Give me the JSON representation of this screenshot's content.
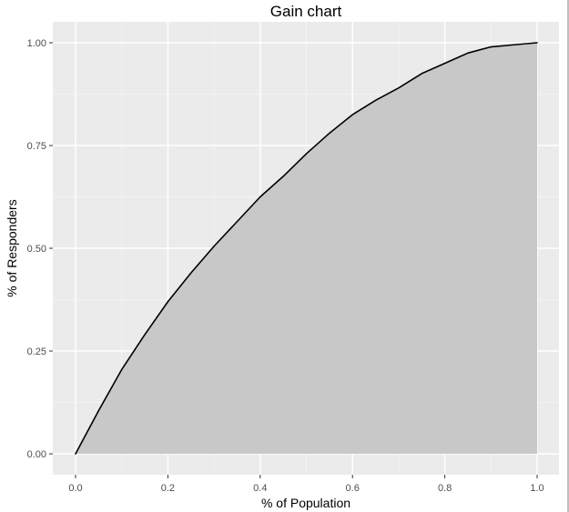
{
  "chart_data": {
    "type": "area",
    "title": "Gain chart",
    "xlabel": "% of Population",
    "ylabel": "% of Responders",
    "xlim": [
      0.0,
      1.0
    ],
    "ylim": [
      0.0,
      1.0
    ],
    "x_ticks": [
      "0.0",
      "0.2",
      "0.4",
      "0.6",
      "0.8",
      "1.0"
    ],
    "y_ticks": [
      "0.00",
      "0.25",
      "0.50",
      "0.75",
      "1.00"
    ],
    "grid": true,
    "legend": false,
    "colors": {
      "panel_background": "#ebebeb",
      "grid_major": "#ffffff",
      "grid_minor": "#f5f5f5",
      "area_fill": "#c8c8c8",
      "line": "#000000"
    },
    "series": [
      {
        "x": [
          0.0,
          0.05,
          0.1,
          0.15,
          0.2,
          0.25,
          0.3,
          0.35,
          0.4,
          0.45,
          0.5,
          0.55,
          0.6,
          0.65,
          0.7,
          0.75,
          0.8,
          0.85,
          0.9,
          0.95,
          1.0
        ],
        "y": [
          0.0,
          0.105,
          0.205,
          0.29,
          0.37,
          0.44,
          0.505,
          0.565,
          0.625,
          0.675,
          0.73,
          0.78,
          0.825,
          0.86,
          0.89,
          0.925,
          0.95,
          0.975,
          0.99,
          0.995,
          1.0
        ]
      }
    ]
  }
}
